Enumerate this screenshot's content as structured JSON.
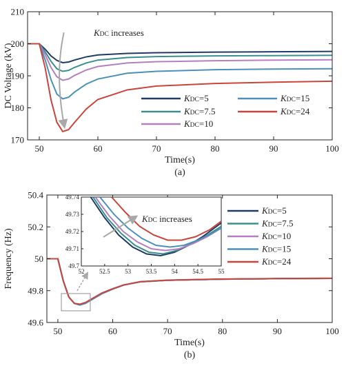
{
  "chart_data": [
    {
      "type": "line",
      "caption": "(a)",
      "xlabel": "Time(s)",
      "ylabel": "DC Voltage (kV)",
      "xlim": [
        48,
        100
      ],
      "ylim": [
        170,
        210
      ],
      "xticks": [
        "50",
        "60",
        "70",
        "80",
        "90",
        "100"
      ],
      "yticks": [
        "170",
        "180",
        "190",
        "200",
        "210"
      ],
      "annotation": {
        "text_k": "K",
        "text_sub": "DC",
        "text_rest": " increases",
        "x": 54,
        "y": 206.5,
        "arrow_from": [
          54,
          203
        ],
        "arrow_to": [
          54.5,
          174
        ]
      },
      "series": [
        {
          "name_k": "K",
          "name_sub": "DC",
          "name_rest": "=5",
          "color": "#1f3b63",
          "x": [
            48,
            50,
            51,
            52,
            53,
            54,
            55,
            56,
            58,
            60,
            65,
            70,
            80,
            90,
            100
          ],
          "y": [
            200,
            200,
            198.3,
            196.2,
            194.8,
            194.1,
            194.3,
            194.9,
            195.9,
            196.5,
            197.0,
            197.2,
            197.4,
            197.5,
            197.6
          ]
        },
        {
          "name_k": "K",
          "name_sub": "DC",
          "name_rest": "=7.5",
          "color": "#3a8f8c",
          "x": [
            48,
            50,
            51,
            52,
            53,
            54,
            55,
            56,
            58,
            60,
            65,
            70,
            80,
            90,
            100
          ],
          "y": [
            200,
            200,
            197.5,
            194.5,
            192.2,
            191.4,
            191.7,
            192.6,
            194.0,
            194.9,
            195.7,
            196.0,
            196.2,
            196.3,
            196.4
          ]
        },
        {
          "name_k": "K",
          "name_sub": "DC",
          "name_rest": "=10",
          "color": "#b47fbf",
          "x": [
            48,
            50,
            51,
            52,
            53,
            54,
            55,
            56,
            58,
            60,
            65,
            70,
            80,
            90,
            100
          ],
          "y": [
            200,
            200,
            196.6,
            192.6,
            189.7,
            188.6,
            189.0,
            190.1,
            191.8,
            192.9,
            194.0,
            194.4,
            194.7,
            194.9,
            195.0
          ]
        },
        {
          "name_k": "K",
          "name_sub": "DC",
          "name_rest": "=15",
          "color": "#4a90b8",
          "x": [
            48,
            50,
            51,
            52,
            53,
            54,
            55,
            56,
            58,
            60,
            65,
            70,
            80,
            90,
            100
          ],
          "y": [
            200,
            200,
            195.0,
            188.8,
            184.3,
            182.8,
            183.3,
            184.9,
            187.4,
            189.0,
            190.8,
            191.4,
            191.9,
            192.1,
            192.2
          ]
        },
        {
          "name_k": "K",
          "name_sub": "DC",
          "name_rest": "=24",
          "color": "#c9453b",
          "x": [
            48,
            50,
            51,
            52,
            53,
            54,
            55,
            56,
            58,
            60,
            65,
            70,
            80,
            90,
            100
          ],
          "y": [
            200,
            200,
            192.5,
            182.5,
            175.5,
            172.6,
            173.2,
            175.4,
            179.6,
            182.6,
            185.6,
            186.8,
            187.6,
            188.0,
            188.3
          ]
        }
      ]
    },
    {
      "type": "line",
      "caption": "(b)",
      "xlabel": "Time(s)",
      "ylabel": "Frequency (Hz)",
      "xlim": [
        48,
        100
      ],
      "ylim": [
        49.6,
        50.4
      ],
      "xticks": [
        "50",
        "60",
        "70",
        "80",
        "90",
        "100"
      ],
      "yticks": [
        "49.6",
        "49.8",
        "50",
        "50.2",
        "50.4"
      ],
      "series": [
        {
          "name_k": "K",
          "name_sub": "DC",
          "name_rest": "=5",
          "color": "#1f3b63",
          "x": [
            48,
            50,
            51,
            52,
            53,
            54,
            55,
            56,
            58,
            60,
            62,
            65,
            70,
            80,
            90,
            100
          ],
          "y": [
            50,
            50,
            49.86,
            49.76,
            49.72,
            49.71,
            49.72,
            49.74,
            49.78,
            49.81,
            49.835,
            49.855,
            49.865,
            49.872,
            49.875,
            49.877
          ]
        },
        {
          "name_k": "K",
          "name_sub": "DC",
          "name_rest": "=7.5",
          "color": "#3a8f8c",
          "x": [
            48,
            50,
            51,
            52,
            53,
            54,
            55,
            56,
            58,
            60,
            62,
            65,
            70,
            80,
            90,
            100
          ],
          "y": [
            50,
            50,
            49.86,
            49.76,
            49.72,
            49.71,
            49.72,
            49.74,
            49.78,
            49.81,
            49.835,
            49.855,
            49.865,
            49.872,
            49.875,
            49.877
          ]
        },
        {
          "name_k": "K",
          "name_sub": "DC",
          "name_rest": "=10",
          "color": "#b47fbf",
          "x": [
            48,
            50,
            51,
            52,
            53,
            54,
            55,
            56,
            58,
            60,
            62,
            65,
            70,
            80,
            90,
            100
          ],
          "y": [
            50,
            50,
            49.86,
            49.76,
            49.72,
            49.71,
            49.72,
            49.74,
            49.78,
            49.81,
            49.835,
            49.855,
            49.865,
            49.872,
            49.875,
            49.877
          ]
        },
        {
          "name_k": "K",
          "name_sub": "DC",
          "name_rest": "=15",
          "color": "#4a90b8",
          "x": [
            48,
            50,
            51,
            52,
            53,
            54,
            55,
            56,
            58,
            60,
            62,
            65,
            70,
            80,
            90,
            100
          ],
          "y": [
            50,
            50,
            49.86,
            49.76,
            49.72,
            49.71,
            49.72,
            49.74,
            49.78,
            49.81,
            49.835,
            49.855,
            49.865,
            49.872,
            49.875,
            49.877
          ]
        },
        {
          "name_k": "K",
          "name_sub": "DC",
          "name_rest": "=24",
          "color": "#c9453b",
          "x": [
            48,
            50,
            51,
            52,
            53,
            54,
            55,
            56,
            58,
            60,
            62,
            65,
            70,
            80,
            90,
            100
          ],
          "y": [
            50,
            50,
            49.86,
            49.76,
            49.72,
            49.715,
            49.725,
            49.745,
            49.785,
            49.812,
            49.836,
            49.856,
            49.866,
            49.873,
            49.876,
            49.878
          ]
        }
      ],
      "inset": {
        "xlim": [
          52,
          55
        ],
        "ylim": [
          49.7,
          49.74
        ],
        "xticks": [
          "52",
          "52.5",
          "53",
          "53.5",
          "54",
          "54.5",
          "55"
        ],
        "yticks": [
          "49.7",
          "49.71",
          "49.72",
          "49.73",
          "49.74"
        ],
        "annotation": {
          "text_k": "K",
          "text_sub": "DC",
          "text_rest": " increases"
        },
        "zoom_box_x": [
          52,
          55
        ],
        "zoom_box_y": [
          49.69,
          49.74
        ],
        "series": [
          {
            "color": "#1f3b63",
            "x": [
              52.2,
              52.5,
              52.8,
              53.1,
              53.4,
              53.7,
              54.0,
              54.3,
              54.6,
              55
            ],
            "y": [
              49.74,
              49.728,
              49.718,
              49.711,
              49.707,
              49.706,
              49.708,
              49.712,
              49.717,
              49.725
            ]
          },
          {
            "color": "#3a8f8c",
            "x": [
              52.25,
              52.55,
              52.85,
              53.15,
              53.45,
              53.75,
              54.05,
              54.35,
              54.65,
              55
            ],
            "y": [
              49.74,
              49.728,
              49.719,
              49.712,
              49.708,
              49.707,
              49.709,
              49.713,
              49.717,
              49.723
            ]
          },
          {
            "color": "#b47fbf",
            "x": [
              52.3,
              52.6,
              52.9,
              53.2,
              53.5,
              53.8,
              54.1,
              54.4,
              54.7,
              55
            ],
            "y": [
              49.74,
              49.729,
              49.72,
              49.714,
              49.71,
              49.709,
              49.71,
              49.713,
              49.717,
              49.722
            ]
          },
          {
            "color": "#4a90b8",
            "x": [
              52.4,
              52.7,
              53.0,
              53.3,
              53.6,
              53.9,
              54.2,
              54.5,
              54.8,
              55
            ],
            "y": [
              49.74,
              49.73,
              49.722,
              49.716,
              49.712,
              49.711,
              49.712,
              49.715,
              49.719,
              49.722
            ]
          },
          {
            "color": "#c9453b",
            "x": [
              52.65,
              52.95,
              53.25,
              53.55,
              53.85,
              54.15,
              54.45,
              54.75,
              55
            ],
            "y": [
              49.74,
              49.731,
              49.723,
              49.718,
              49.715,
              49.715,
              49.717,
              49.721,
              49.726
            ]
          }
        ]
      }
    }
  ]
}
